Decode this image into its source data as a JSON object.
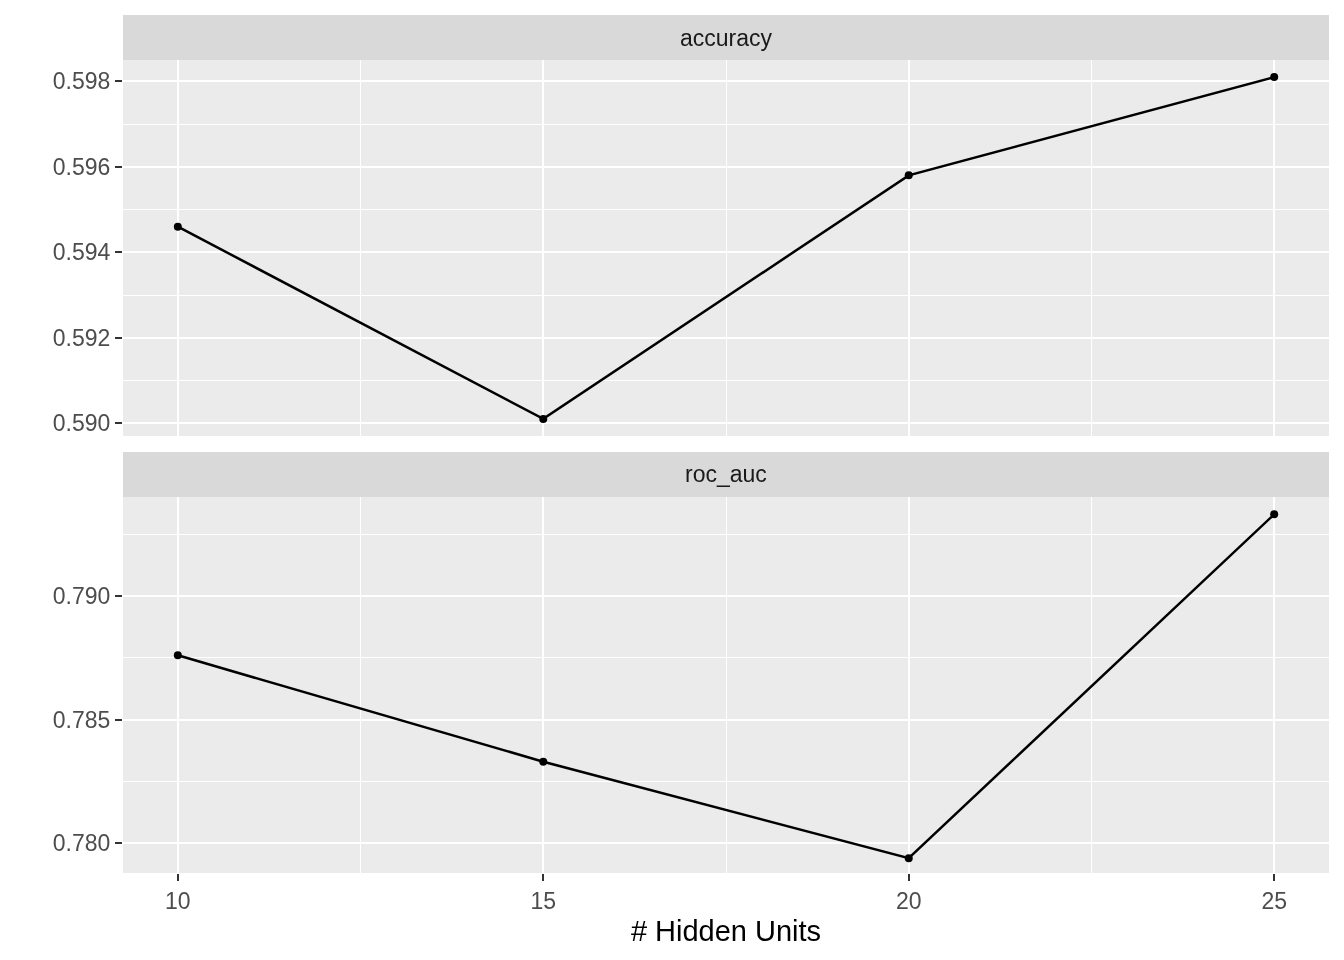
{
  "chart_data": [
    {
      "type": "line",
      "title": "accuracy",
      "x": [
        10,
        15,
        20,
        25
      ],
      "values": [
        0.5946,
        0.5901,
        0.5958,
        0.5981
      ],
      "color": "#000000",
      "marker": "circle",
      "grid": true,
      "tick_labels": "y",
      "xlim": [
        9.25,
        25.75
      ],
      "xticks": [
        10,
        15,
        20,
        25
      ],
      "ylim": [
        0.5897,
        0.5985
      ],
      "yticks": [
        {
          "value": 0.59,
          "label": "0.590"
        },
        {
          "value": 0.592,
          "label": "0.592"
        },
        {
          "value": 0.594,
          "label": "0.594"
        },
        {
          "value": 0.596,
          "label": "0.596"
        },
        {
          "value": 0.598,
          "label": "0.598"
        }
      ]
    },
    {
      "type": "line",
      "title": "roc_auc",
      "xlabel": "# Hidden Units",
      "x": [
        10,
        15,
        20,
        25
      ],
      "values": [
        0.7876,
        0.7833,
        0.7794,
        0.7933
      ],
      "color": "#000000",
      "marker": "circle",
      "grid": true,
      "xlim": [
        9.25,
        25.75
      ],
      "xticks": [
        10,
        15,
        20,
        25
      ],
      "ylim": [
        0.7788,
        0.794
      ],
      "yticks": [
        {
          "value": 0.78,
          "label": "0.780"
        },
        {
          "value": 0.785,
          "label": "0.785"
        },
        {
          "value": 0.79,
          "label": "0.790"
        }
      ]
    }
  ]
}
